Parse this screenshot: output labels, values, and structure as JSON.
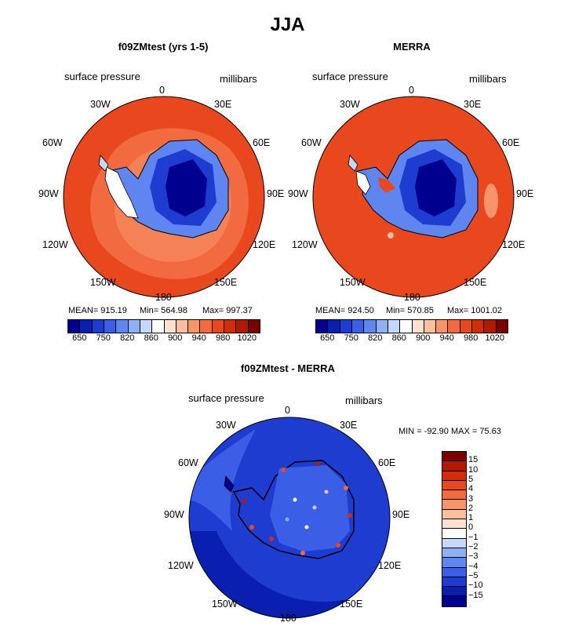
{
  "title": "JJA",
  "panels": [
    {
      "id": "model",
      "title": "f09ZMtest (yrs 1-5)",
      "variable": "surface pressure",
      "units": "millibars",
      "stats": {
        "mean": "MEAN=  915.19",
        "min": "Min=  564.98",
        "max": "Max=  997.37"
      }
    },
    {
      "id": "obs",
      "title": "MERRA",
      "variable": "surface pressure",
      "units": "millibars",
      "stats": {
        "mean": "MEAN=  924.50",
        "min": "Min=  570.85",
        "max": "Max= 1001.02"
      }
    },
    {
      "id": "diff",
      "title": "f09ZMtest - MERRA",
      "variable": "surface pressure",
      "units": "millibars",
      "stats": {
        "minmax": "MIN = -92.90  MAX =  75.63"
      }
    }
  ],
  "longitude_labels": {
    "l0": "0",
    "l30e": "30E",
    "l60e": "60E",
    "l90e": "90E",
    "l120e": "120E",
    "l150e": "150E",
    "l180": "180",
    "l150w": "150W",
    "l120w": "120W",
    "l90w": "90W",
    "l60w": "60W",
    "l30w": "30W"
  },
  "abs_colorbar": {
    "colors": [
      "#00008f",
      "#0a1fb0",
      "#1f3cd0",
      "#3a5fe6",
      "#5f86f0",
      "#8fb0f5",
      "#c5d7fa",
      "#ffffff",
      "#fde0cf",
      "#fbbf9f",
      "#f8946a",
      "#f26a40",
      "#e9471d",
      "#d22d0a",
      "#b01a02",
      "#7a0000"
    ],
    "labels": [
      "650",
      "750",
      "820",
      "860",
      "900",
      "940",
      "980",
      "1020"
    ]
  },
  "diff_colorbar": {
    "colors": [
      "#7a0000",
      "#b01a02",
      "#d22d0a",
      "#e9471d",
      "#f26a40",
      "#f8946a",
      "#fbbf9f",
      "#fde0cf",
      "#ffffff",
      "#c5d7fa",
      "#8fb0f5",
      "#5f86f0",
      "#3a5fe6",
      "#1f3cd0",
      "#0a1fb0",
      "#00008f"
    ],
    "labels": [
      "15",
      "10",
      "5",
      "4",
      "3",
      "2",
      "1",
      "0",
      "−1",
      "−2",
      "−3",
      "−4",
      "−5",
      "−10",
      "−15"
    ]
  }
}
